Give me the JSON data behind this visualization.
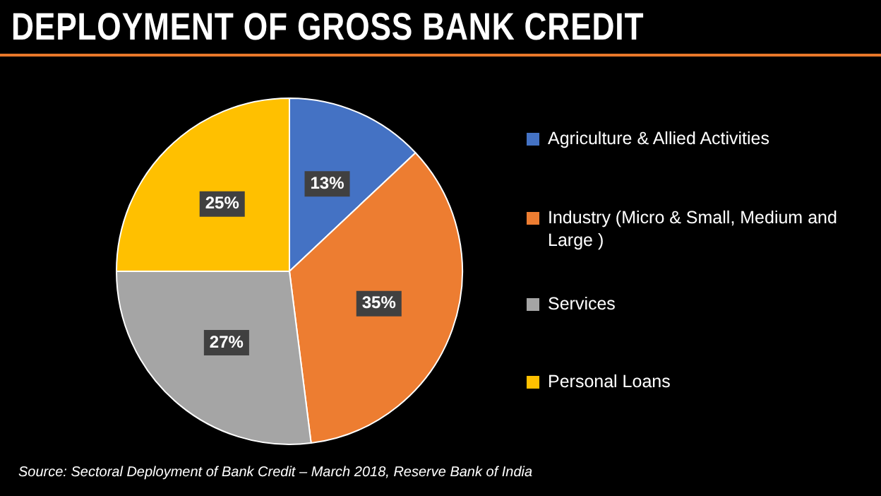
{
  "chart_data": {
    "type": "pie",
    "title": "DEPLOYMENT OF GROSS BANK CREDIT",
    "categories": [
      "Agriculture & Allied Activities",
      "Industry (Micro & Small, Medium and Large )",
      "Services",
      "Personal Loans"
    ],
    "values": [
      13,
      35,
      27,
      25
    ],
    "colors": [
      "#4472c4",
      "#ed7d31",
      "#a5a5a5",
      "#ffc000"
    ],
    "value_labels": [
      "13%",
      "35%",
      "27%",
      "25%"
    ],
    "legend": "right",
    "annotations": [
      "Source: Sectoral Deployment of Bank Credit – March 2018, Reserve Bank of India"
    ]
  }
}
